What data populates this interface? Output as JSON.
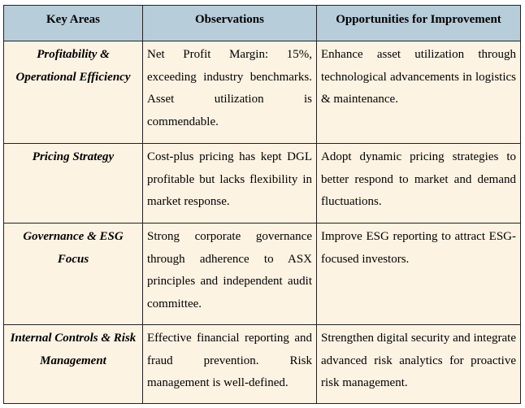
{
  "table": {
    "headers": [
      "Key Areas",
      "Observations",
      "Opportunities for Improvement"
    ],
    "rows": [
      {
        "key_area": "Profitability & Operational Efficiency",
        "observation": "Net Profit Margin: 15%, exceeding industry benchmarks. Asset utilization is commendable.",
        "opportunity": "Enhance asset utilization through technological advancements in logistics & maintenance."
      },
      {
        "key_area": "Pricing Strategy",
        "observation": "Cost-plus pricing has kept DGL profitable but lacks flexibility in market response.",
        "opportunity": "Adopt dynamic pricing strategies to better respond to market and demand fluctuations."
      },
      {
        "key_area": "Governance & ESG Focus",
        "observation": "Strong corporate governance through adherence to ASX principles and independent audit committee.",
        "opportunity": "Improve ESG reporting to attract ESG-focused investors."
      },
      {
        "key_area": "Internal Controls & Risk Management",
        "observation": "Effective financial reporting and fraud prevention. Risk management is well-defined.",
        "opportunity": "Strengthen digital security and integrate advanced risk analytics for proactive risk management."
      }
    ]
  },
  "colors": {
    "header_background": "#b7cdd9",
    "cell_background": "#fdf3e3",
    "border": "#222222"
  }
}
